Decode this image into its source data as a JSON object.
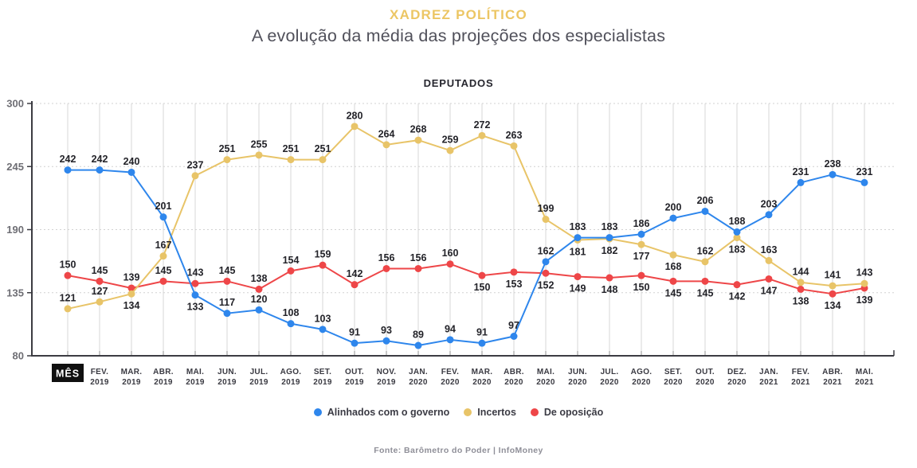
{
  "header": {
    "title": "XADREZ POLÍTICO",
    "subtitle": "A evolução da média das projeções dos especialistas"
  },
  "chart_data": {
    "type": "line",
    "title": "DEPUTADOS",
    "x_axis_label": "MÊS",
    "x_labels": [
      [
        "MÊS"
      ],
      [
        "FEV.",
        "2019"
      ],
      [
        "MAR.",
        "2019"
      ],
      [
        "ABR.",
        "2019"
      ],
      [
        "MAI.",
        "2019"
      ],
      [
        "JUN.",
        "2019"
      ],
      [
        "JUL.",
        "2019"
      ],
      [
        "AGO.",
        "2019"
      ],
      [
        "SET.",
        "2019"
      ],
      [
        "OUT.",
        "2019"
      ],
      [
        "NOV.",
        "2019"
      ],
      [
        "JAN.",
        "2020"
      ],
      [
        "FEV.",
        "2020"
      ],
      [
        "MAR.",
        "2020"
      ],
      [
        "ABR.",
        "2020"
      ],
      [
        "MAI.",
        "2020"
      ],
      [
        "JUN.",
        "2020"
      ],
      [
        "JUL.",
        "2020"
      ],
      [
        "AGO.",
        "2020"
      ],
      [
        "SET.",
        "2020"
      ],
      [
        "OUT.",
        "2020"
      ],
      [
        "DEZ.",
        "2020"
      ],
      [
        "JAN.",
        "2021"
      ],
      [
        "FEV.",
        "2021"
      ],
      [
        "ABR.",
        "2021"
      ],
      [
        "MAI.",
        "2021"
      ]
    ],
    "y_ticks": [
      80,
      135,
      190,
      245,
      300
    ],
    "ylim": [
      80,
      300
    ],
    "grid": true,
    "legend_position": "bottom",
    "series": [
      {
        "name": "Alinhados com o governo",
        "color": "#2e86ec",
        "values": [
          242,
          242,
          240,
          201,
          133,
          117,
          120,
          108,
          103,
          91,
          93,
          89,
          94,
          91,
          97,
          162,
          183,
          183,
          186,
          200,
          206,
          188,
          203,
          231,
          238,
          231
        ],
        "label_side": [
          "a",
          "a",
          "a",
          "a",
          "b",
          "a",
          "a",
          "a",
          "a",
          "a",
          "a",
          "a",
          "a",
          "a",
          "a",
          "a",
          "a",
          "a",
          "a",
          "a",
          "a",
          "a",
          "a",
          "a",
          "a",
          "a"
        ]
      },
      {
        "name": "Incertos",
        "color": "#e8c468",
        "values": [
          121,
          127,
          134,
          167,
          237,
          251,
          255,
          251,
          251,
          280,
          264,
          268,
          259,
          272,
          263,
          199,
          181,
          182,
          177,
          168,
          162,
          183,
          163,
          144,
          141,
          143
        ],
        "label_side": [
          "a",
          "a",
          "b",
          "a",
          "a",
          "a",
          "a",
          "a",
          "a",
          "a",
          "a",
          "a",
          "a",
          "a",
          "a",
          "a",
          "b",
          "b",
          "b",
          "b",
          "a",
          "b",
          "a",
          "a",
          "a",
          "a"
        ]
      },
      {
        "name": "De oposição",
        "color": "#ee4648",
        "values": [
          150,
          145,
          139,
          145,
          143,
          145,
          138,
          154,
          159,
          142,
          156,
          156,
          160,
          150,
          153,
          152,
          149,
          148,
          150,
          145,
          145,
          142,
          147,
          138,
          134,
          139
        ],
        "label_side": [
          "a",
          "a",
          "a",
          "a",
          "a",
          "a",
          "a",
          "a",
          "a",
          "a",
          "a",
          "a",
          "a",
          "b",
          "b",
          "b",
          "b",
          "b",
          "b",
          "b",
          "b",
          "b",
          "b",
          "b",
          "b",
          "b"
        ]
      }
    ]
  },
  "footer": {
    "source": "Fonte: Barômetro do Poder | InfoMoney"
  }
}
